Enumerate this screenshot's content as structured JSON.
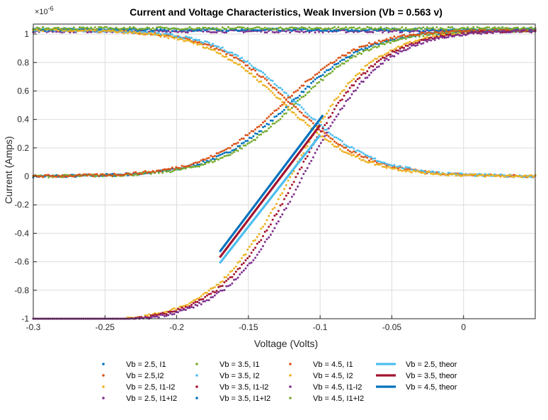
{
  "chart_data": {
    "type": "scatter",
    "title": "Current and Voltage Characteristics, Weak Inversion (Vb = 0.563 v)",
    "xlabel": "Voltage (Volts)",
    "ylabel": "Current (Amps)",
    "y_exponent": "×10^-6",
    "y_exponent_base": "×10",
    "y_exponent_power": "-6",
    "xlim": [
      -0.3,
      0.05
    ],
    "ylim": [
      -1,
      1.07
    ],
    "x_ticks": [
      -0.3,
      -0.25,
      -0.2,
      -0.15,
      -0.1,
      -0.05,
      0
    ],
    "x_tick_labels": [
      "-0.3",
      "-0.25",
      "-0.2",
      "-0.15",
      "-0.1",
      "-0.05",
      "0"
    ],
    "y_ticks": [
      -1,
      -0.8,
      -0.6,
      -0.4,
      -0.2,
      0,
      0.2,
      0.4,
      0.6,
      0.8,
      1
    ],
    "y_tick_labels": [
      "-1",
      "-0.8",
      "-0.6",
      "-0.4",
      "-0.2",
      "0",
      "0.2",
      "0.4",
      "0.6",
      "0.8",
      "1"
    ],
    "grid": true,
    "legend_position": "below",
    "series": [
      {
        "name": "Vb = 2.5, I1",
        "kind": "I1",
        "color": "#0072BD",
        "x0": -0.1205,
        "width": 0.027
      },
      {
        "name": "Vb = 2.5,I2",
        "kind": "I2",
        "color": "#D95319",
        "x0": -0.1205,
        "width": 0.027
      },
      {
        "name": "Vb = 2.5, I1-I2",
        "kind": "I1-I2",
        "color": "#EDB120",
        "x0": -0.1205,
        "width": 0.027
      },
      {
        "name": "Vb = 2.5, I1+I2",
        "kind": "I1+I2",
        "color": "#7E2F8E",
        "level": 1.02
      },
      {
        "name": "Vb = 3.5, I1",
        "kind": "I1",
        "color": "#77AC30",
        "x0": -0.1165,
        "width": 0.027
      },
      {
        "name": "Vb = 3.5, I2",
        "kind": "I2",
        "color": "#4DBEEE",
        "x0": -0.1165,
        "width": 0.027
      },
      {
        "name": "Vb = 3.5, I1-I2",
        "kind": "I1-I2",
        "color": "#A2142F",
        "x0": -0.1165,
        "width": 0.027
      },
      {
        "name": "Vb = 3.5, I1+I2",
        "kind": "I1+I2",
        "color": "#0072BD",
        "level": 1.03
      },
      {
        "name": "Vb = 4.5, I1",
        "kind": "I1",
        "color": "#D95319",
        "x0": -0.1255,
        "width": 0.027
      },
      {
        "name": "Vb = 4.5, I2",
        "kind": "I2",
        "color": "#EDB120",
        "x0": -0.1255,
        "width": 0.027
      },
      {
        "name": "Vb = 4.5, I1-I2",
        "kind": "I1-I2",
        "color": "#7E2F8E",
        "x0": -0.112,
        "width": 0.027
      },
      {
        "name": "Vb = 4.5, I1+I2",
        "kind": "I1+I2",
        "color": "#77AC30",
        "level": 1.04
      },
      {
        "name": "Vb = 2.5, theor",
        "kind": "theor",
        "color": "#4DBEEE",
        "x": [
          -0.17,
          -0.1
        ],
        "y": [
          -0.61,
          0.29
        ]
      },
      {
        "name": "Vb = 3.5, theor",
        "kind": "theor",
        "color": "#A2142F",
        "x": [
          -0.17,
          -0.1
        ],
        "y": [
          -0.57,
          0.36
        ]
      },
      {
        "name": "Vb = 4.5, theor",
        "kind": "theor",
        "color": "#0072BD",
        "x": [
          -0.17,
          -0.098
        ],
        "y": [
          -0.53,
          0.43
        ]
      }
    ]
  }
}
